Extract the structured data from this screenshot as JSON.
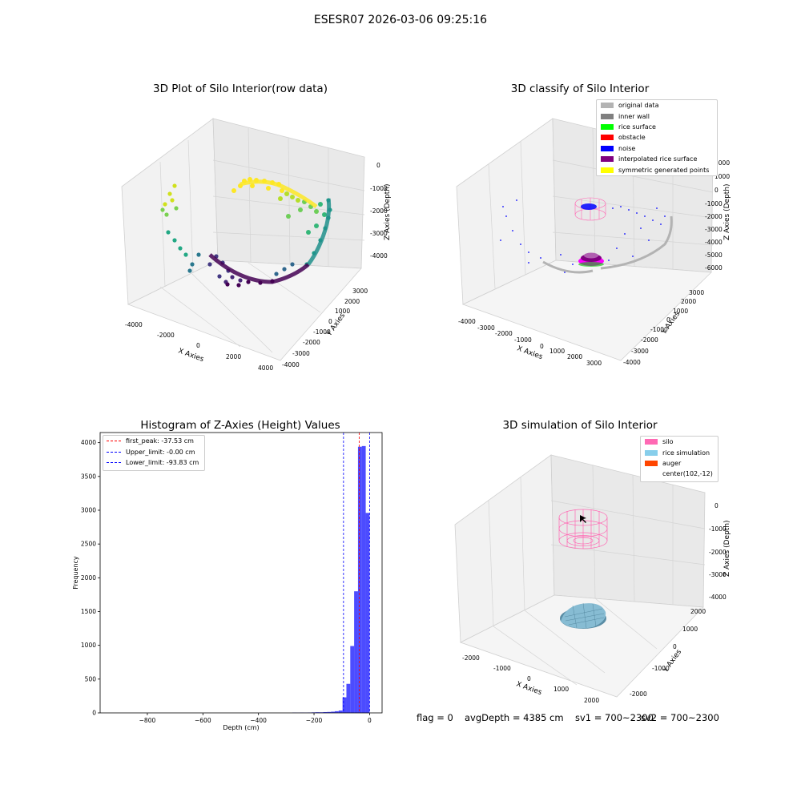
{
  "suptitle": "ESESR07 2026-03-06 09:25:16",
  "panels": {
    "raw": {
      "title": "3D Plot of Silo Interior(row data)",
      "xlabel": "X Axies",
      "ylabel": "Y Axies",
      "zlabel": "Z Axies (Depth)",
      "xticks": [
        "-4000",
        "-2000",
        "0",
        "2000",
        "4000"
      ],
      "yticks": [
        "-4000",
        "-3000",
        "-2000",
        "-1000",
        "0",
        "1000",
        "2000",
        "3000"
      ],
      "zticks": [
        "0",
        "-1000",
        "-2000",
        "-3000",
        "-4000"
      ]
    },
    "classify": {
      "title": "3D classify of Silo Interior",
      "xlabel": "X Axies",
      "ylabel": "Y Axies",
      "zlabel": "Z Axies (Depth)",
      "xticks": [
        "-4000",
        "-3000",
        "-2000",
        "-1000",
        "0",
        "1000",
        "2000",
        "3000"
      ],
      "yticks": [
        "-4000",
        "-3000",
        "-2000",
        "-1000",
        "0",
        "1000",
        "2000",
        "3000"
      ],
      "zticks": [
        "2000",
        "1000",
        "0",
        "-1000",
        "-2000",
        "-3000",
        "-4000",
        "-5000",
        "-6000"
      ],
      "legend": [
        {
          "label": "original data",
          "color": "#b3b3b3"
        },
        {
          "label": "inner wall",
          "color": "#808080"
        },
        {
          "label": "rice surface",
          "color": "#00ff00"
        },
        {
          "label": "obstacle",
          "color": "#ff0000"
        },
        {
          "label": "noise",
          "color": "#0000ff"
        },
        {
          "label": "interpolated rice surface",
          "color": "#800080"
        },
        {
          "label": "symmetric generated points",
          "color": "#ffff00"
        }
      ]
    },
    "simulation": {
      "title": "3D simulation of Silo Interior",
      "xlabel": "X Axies",
      "ylabel": "Y Axies",
      "zlabel": "Z Axies (Depth)",
      "xticks": [
        "-2000",
        "-1000",
        "0",
        "1000",
        "2000"
      ],
      "yticks": [
        "-2000",
        "-1000",
        "0",
        "1000",
        "2000"
      ],
      "zticks": [
        "0",
        "-1000",
        "-2000",
        "-3000",
        "-4000"
      ],
      "legend": [
        {
          "label": "silo",
          "color": "#ff69b4"
        },
        {
          "label": "rice simulation",
          "color": "#87ceeb"
        },
        {
          "label": "auger",
          "color": "#ff4500"
        },
        {
          "label": "center(102,-12)",
          "color": "none"
        }
      ]
    }
  },
  "chart_data": {
    "type": "bar",
    "title": "Histogram of Z-Axies (Height) Values",
    "xlabel": "Depth (cm)",
    "ylabel": "Frequency",
    "xlim": [
      -970,
      45
    ],
    "ylim": [
      0,
      4150
    ],
    "xticks": [
      -800,
      -600,
      -400,
      -200,
      0
    ],
    "yticks": [
      0,
      500,
      1000,
      1500,
      2000,
      2500,
      3000,
      3500,
      4000
    ],
    "bar_color": "#0000ff",
    "bin_width": 13.9,
    "bins": [
      {
        "left": -278,
        "value": 4
      },
      {
        "left": -264.1,
        "value": 3
      },
      {
        "left": -250.2,
        "value": 5
      },
      {
        "left": -236.3,
        "value": 4
      },
      {
        "left": -222.4,
        "value": 6
      },
      {
        "left": -208.5,
        "value": 8
      },
      {
        "left": -194.6,
        "value": 10
      },
      {
        "left": -180.7,
        "value": 9
      },
      {
        "left": -166.8,
        "value": 12
      },
      {
        "left": -152.9,
        "value": 14
      },
      {
        "left": -139,
        "value": 18
      },
      {
        "left": -125.1,
        "value": 25
      },
      {
        "left": -111.2,
        "value": 35
      },
      {
        "left": -97.3,
        "value": 230
      },
      {
        "left": -83.4,
        "value": 430
      },
      {
        "left": -69.5,
        "value": 990
      },
      {
        "left": -55.6,
        "value": 1800
      },
      {
        "left": -41.7,
        "value": 3940
      },
      {
        "left": -27.8,
        "value": 3950
      },
      {
        "left": -13.9,
        "value": 2960
      }
    ],
    "vlines": [
      {
        "label": "first_peak: -37.53 cm",
        "x": -37.53,
        "color": "#ff0000"
      },
      {
        "label": "Upper_limit: -0.00 cm",
        "x": 0,
        "color": "#0000ff"
      },
      {
        "label": "Lower_limit: -93.83 cm",
        "x": -93.83,
        "color": "#0000ff"
      }
    ],
    "legend_position": "upper-left"
  },
  "footer": {
    "flag": "flag = 0",
    "avgdepth": "avgDepth = 4385 cm",
    "sv1": "sv1 = 700~2300",
    "sv2": "sv2 = 700~2300"
  }
}
